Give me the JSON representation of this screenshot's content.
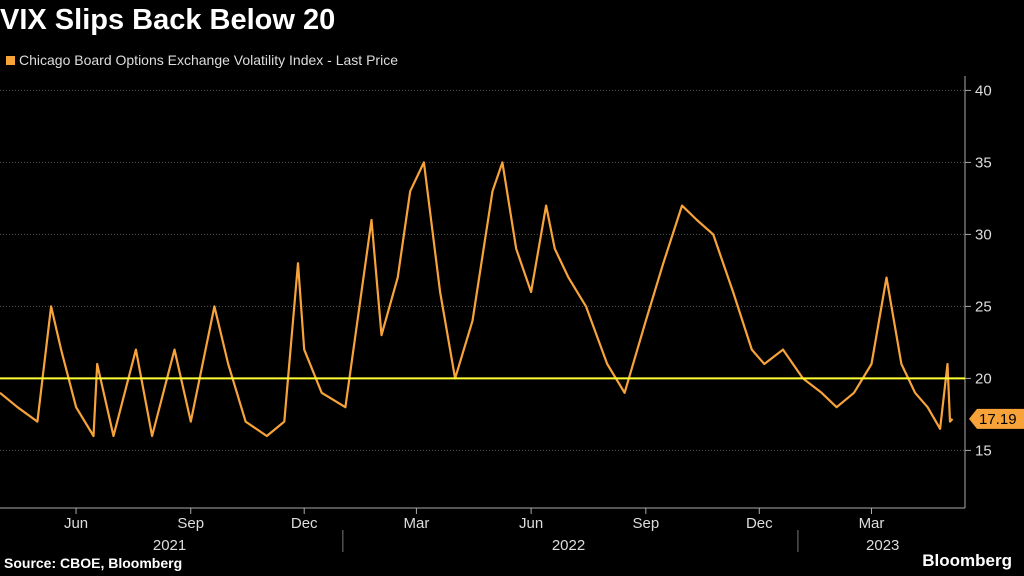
{
  "title": "VIX Slips Back Below 20",
  "source": "Source: CBOE, Bloomberg",
  "brand": "Bloomberg",
  "colors": {
    "series": "#F7A33A",
    "reference": "#FFFF33",
    "grid": "#555555",
    "background": "#000000"
  },
  "chart_data": {
    "type": "line",
    "title": "VIX Slips Back Below 20",
    "xlabel": "",
    "ylabel": "",
    "ylim": [
      11,
      41
    ],
    "xlim": [
      "2021-04-01",
      "2023-05-15"
    ],
    "y_ticks": [
      15,
      20,
      25,
      30,
      35,
      40
    ],
    "grid": true,
    "legend": "top-left",
    "x_month_ticks": [
      {
        "date": "2021-06-01",
        "label": "Jun"
      },
      {
        "date": "2021-09-01",
        "label": "Sep"
      },
      {
        "date": "2021-12-01",
        "label": "Dec"
      },
      {
        "date": "2022-03-01",
        "label": "Mar"
      },
      {
        "date": "2022-06-01",
        "label": "Jun"
      },
      {
        "date": "2022-09-01",
        "label": "Sep"
      },
      {
        "date": "2022-12-01",
        "label": "Dec"
      },
      {
        "date": "2023-03-01",
        "label": "Mar"
      }
    ],
    "x_year_labels": [
      {
        "date": "2021-08-15",
        "label": "2021"
      },
      {
        "date": "2022-07-01",
        "label": "2022"
      },
      {
        "date": "2023-03-10",
        "label": "2023"
      }
    ],
    "x_year_dividers": [
      "2022-01-01",
      "2023-01-01"
    ],
    "reference_line": {
      "value": 20
    },
    "last_value": {
      "value": 17.19,
      "label": "17.19"
    },
    "series": [
      {
        "name": "Chicago Board Options Exchange Volatility Index - Last Price",
        "x": [
          "2021-04-01",
          "2021-04-15",
          "2021-05-01",
          "2021-05-12",
          "2021-05-20",
          "2021-06-01",
          "2021-06-15",
          "2021-06-18",
          "2021-07-01",
          "2021-07-19",
          "2021-08-01",
          "2021-08-19",
          "2021-09-01",
          "2021-09-20",
          "2021-10-01",
          "2021-10-15",
          "2021-11-01",
          "2021-11-15",
          "2021-11-26",
          "2021-12-01",
          "2021-12-15",
          "2022-01-03",
          "2022-01-24",
          "2022-02-01",
          "2022-02-14",
          "2022-02-24",
          "2022-03-07",
          "2022-03-20",
          "2022-04-01",
          "2022-04-15",
          "2022-05-01",
          "2022-05-09",
          "2022-05-20",
          "2022-06-01",
          "2022-06-13",
          "2022-06-20",
          "2022-07-01",
          "2022-07-15",
          "2022-08-01",
          "2022-08-15",
          "2022-09-01",
          "2022-09-15",
          "2022-09-30",
          "2022-10-12",
          "2022-10-25",
          "2022-11-10",
          "2022-11-25",
          "2022-12-05",
          "2022-12-20",
          "2023-01-05",
          "2023-01-20",
          "2023-02-01",
          "2023-02-15",
          "2023-03-01",
          "2023-03-13",
          "2023-03-25",
          "2023-04-05",
          "2023-04-15",
          "2023-04-25",
          "2023-05-01",
          "2023-05-03",
          "2023-05-05"
        ],
        "values": [
          19,
          18,
          17,
          25,
          22,
          18,
          16,
          21,
          16,
          22,
          16,
          22,
          17,
          25,
          21,
          17,
          16,
          17,
          28,
          22,
          19,
          18,
          31,
          23,
          27,
          33,
          35,
          26,
          20,
          24,
          33,
          35,
          29,
          26,
          32,
          29,
          27,
          25,
          21,
          19,
          24,
          28,
          32,
          31,
          30,
          26,
          22,
          21,
          22,
          20,
          19,
          18,
          19,
          21,
          27,
          21,
          19,
          18,
          16.5,
          21,
          17,
          17.19
        ]
      }
    ]
  }
}
